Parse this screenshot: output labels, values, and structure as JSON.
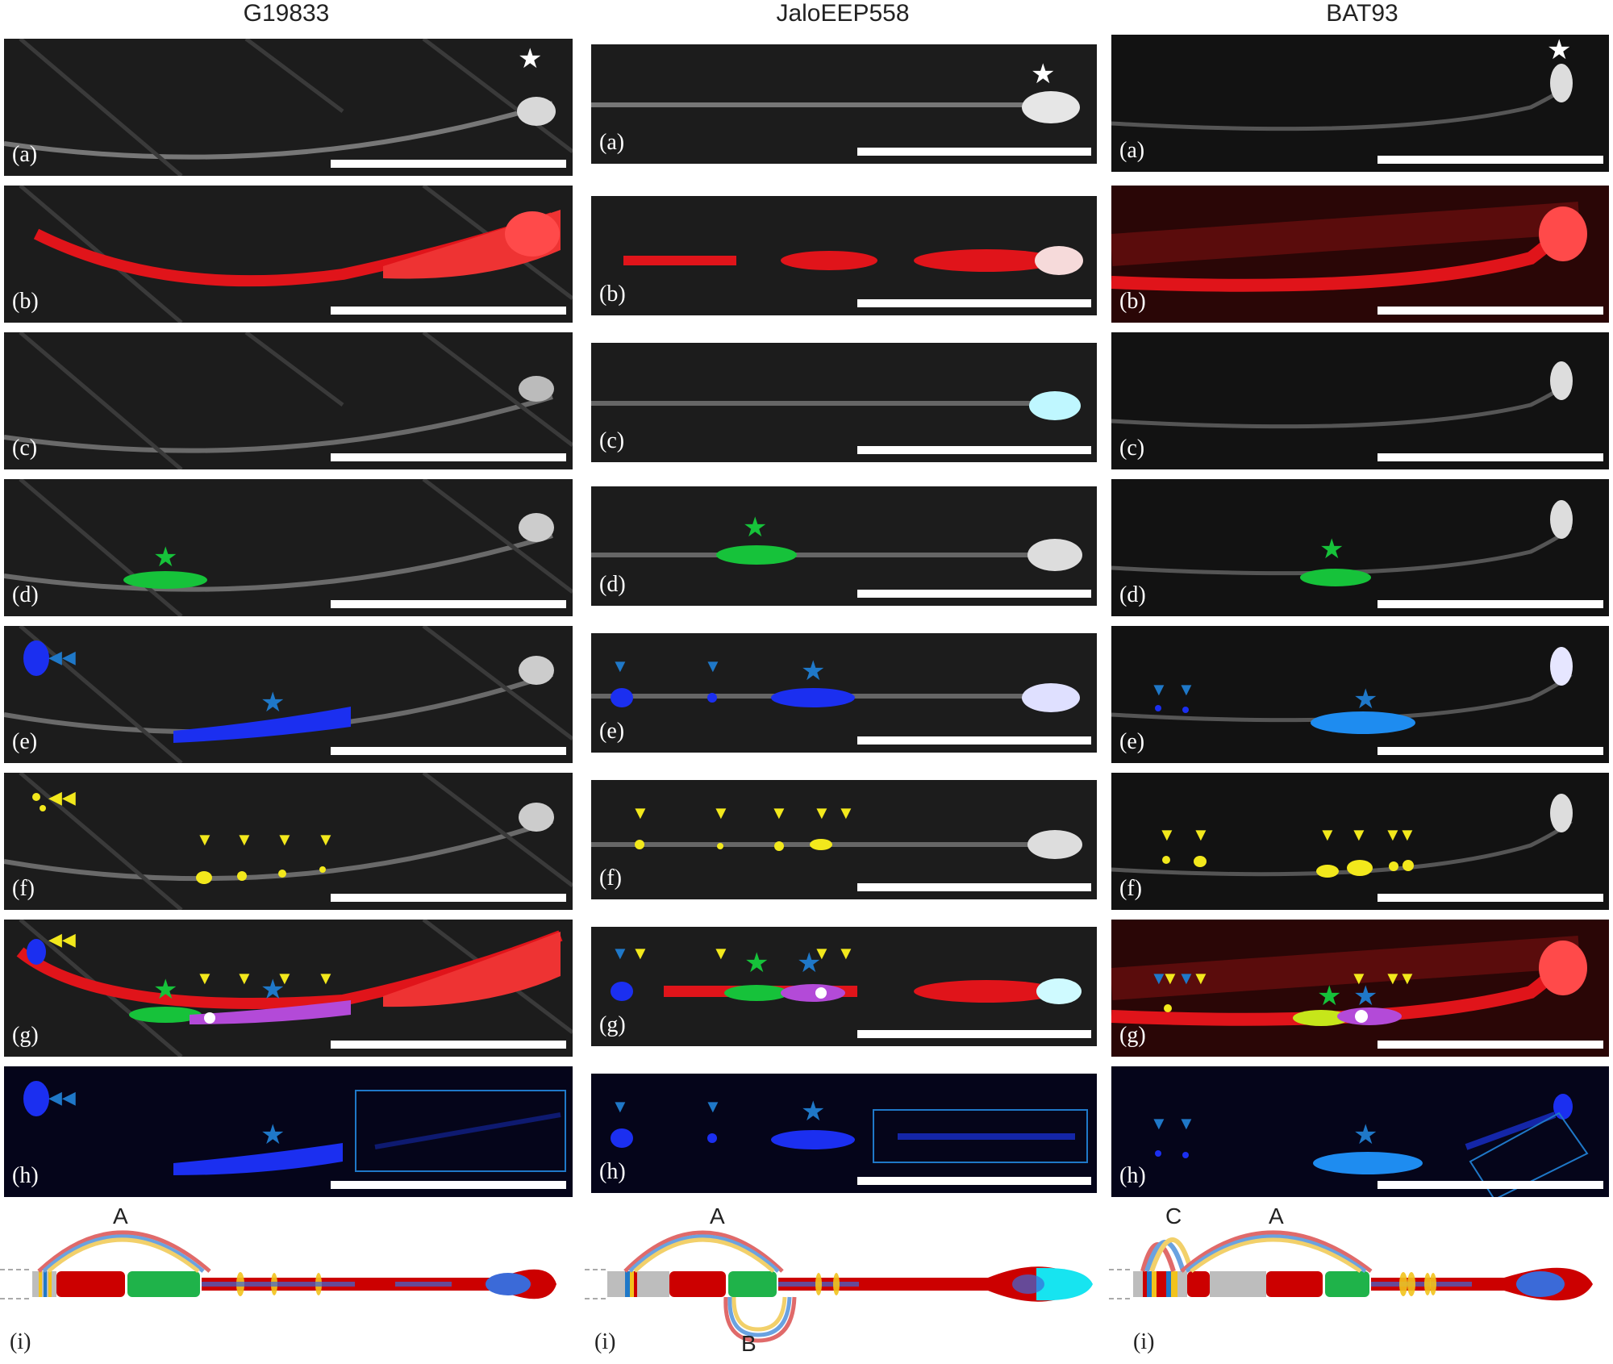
{
  "columns": [
    {
      "title": "G19833"
    },
    {
      "title": "JaloEEP558"
    },
    {
      "title": "BAT93"
    }
  ],
  "panel_labels": [
    "(a)",
    "(b)",
    "(c)",
    "(d)",
    "(e)",
    "(f)",
    "(g)",
    "(h)"
  ],
  "diagram_label": "(i)",
  "diagram_letters": {
    "col1": [
      "A"
    ],
    "col2": [
      "A",
      "B"
    ],
    "col3": [
      "C",
      "A"
    ]
  },
  "colors": {
    "red": "#e0141a",
    "green": "#16c23a",
    "blue": "#1b2ff0",
    "yellow": "#f2e81c",
    "cyan": "#17e4f0",
    "arrow_blue": "#1f78c8",
    "star_white": "#ffffff",
    "background": "#1a1a1a"
  },
  "markers": {
    "star": "★",
    "arrowhead": "▼"
  }
}
